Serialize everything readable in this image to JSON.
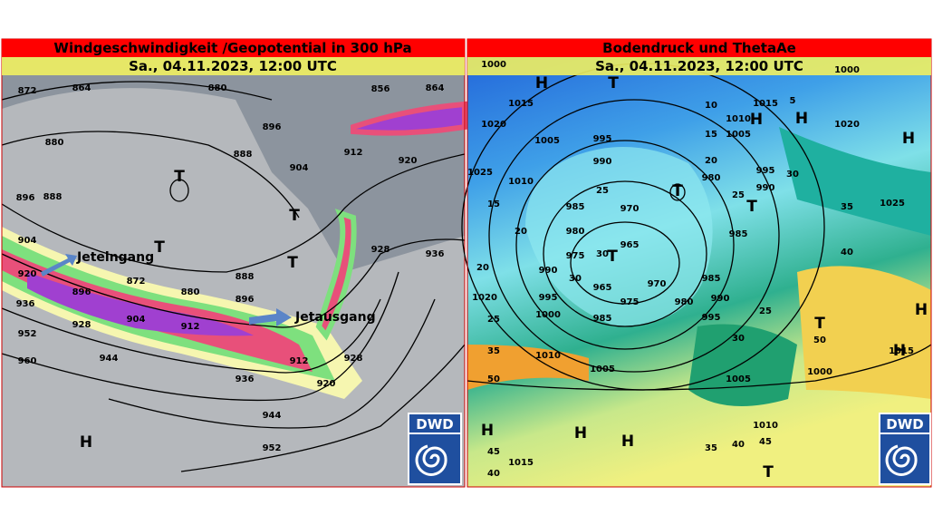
{
  "left_panel": {
    "title": "Windgeschwindigkeit /Geopotential in 300 hPa",
    "subtitle": "Sa., 04.11.2023, 12:00 UTC",
    "annotations": [
      "Jeteingang",
      "Jetausgang"
    ],
    "logo": "DWD",
    "labels": [
      "872",
      "864",
      "880",
      "856",
      "864",
      "880",
      "888",
      "896",
      "912",
      "920",
      "904",
      "896",
      "888",
      "904",
      "920",
      "936",
      "952",
      "960",
      "872",
      "896",
      "880",
      "888",
      "896",
      "904",
      "912",
      "928",
      "944",
      "936",
      "944",
      "952",
      "920",
      "912",
      "928",
      "928",
      "936",
      "T",
      "T",
      "T",
      "T",
      "H"
    ]
  },
  "right_panel": {
    "title": "Bodendruck und ThetaAe",
    "subtitle": "Sa., 04.11.2023, 12:00 UTC",
    "logo": "DWD",
    "labels": [
      "H",
      "T",
      "1000",
      "1015",
      "1020",
      "1005",
      "1010",
      "1025",
      "15",
      "20",
      "20",
      "1020",
      "25",
      "35",
      "50",
      "995",
      "990",
      "25",
      "985",
      "970",
      "980",
      "975",
      "965",
      "T",
      "30",
      "30",
      "965",
      "975",
      "970",
      "990",
      "995",
      "1000",
      "985",
      "1010",
      "1005",
      "T",
      "10",
      "15",
      "20",
      "980",
      "1010",
      "1005",
      "H",
      "1015",
      "5",
      "H",
      "1020",
      "H",
      "995",
      "990",
      "25",
      "T",
      "985",
      "30",
      "35",
      "1025",
      "985",
      "990",
      "980",
      "995",
      "30",
      "25",
      "40",
      "T",
      "50",
      "1015",
      "H",
      "H",
      "1000",
      "1005",
      "1010",
      "45",
      "40",
      "35",
      "H",
      "H",
      "H",
      "45",
      "1015",
      "40",
      "T",
      "1000"
    ]
  }
}
